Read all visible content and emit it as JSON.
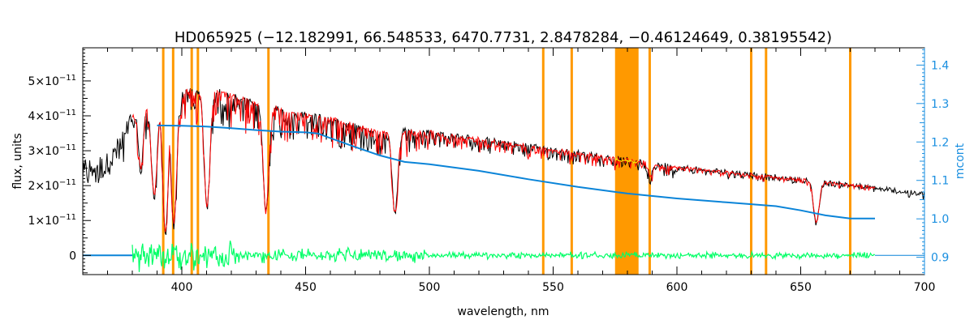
{
  "chart_data": {
    "type": "line",
    "title": "HD065925    (−12.182991, 66.548533, 6470.7731, 2.8478284, −0.46124649, 0.38195542)",
    "xlabel": "wavelength, nm",
    "ylabel": "flux, units",
    "y2label": "mcont",
    "xlim": [
      360,
      700
    ],
    "ylim": [
      -5.5e-12,
      5.95e-11
    ],
    "y2lim": [
      0.855,
      1.445
    ],
    "x_ticks": [
      400,
      450,
      500,
      550,
      600,
      650,
      700
    ],
    "x_tick_labels": [
      "400",
      "450",
      "500",
      "550",
      "600",
      "650",
      "700"
    ],
    "y_ticks": [
      0,
      1e-11,
      2e-11,
      3e-11,
      4e-11,
      5e-11
    ],
    "y_tick_mantissas": [
      "0",
      "1",
      "2",
      "3",
      "4",
      "5"
    ],
    "y_tick_suffix": "×10",
    "y_tick_exponent": "−11",
    "y2_ticks": [
      0.9,
      1.0,
      1.1,
      1.2,
      1.3,
      1.4
    ],
    "y2_tick_labels": [
      "0.9",
      "1.0",
      "1.1",
      "1.2",
      "1.3",
      "1.4"
    ],
    "grid": false,
    "colors": {
      "observed": "#000000",
      "model": "#ff0000",
      "residual": "#00ff66",
      "continuum": "#0a84d8",
      "masks": "#ff9900",
      "right_axis": "#1a8fe0",
      "highlight": "#ffff00"
    },
    "mask_lines_x": [
      392.5,
      396.5,
      404.0,
      406.5,
      435.0,
      546.0,
      557.5,
      589.0,
      630.0,
      636.0,
      670.0
    ],
    "mask_band_x": [
      575.0,
      584.5
    ],
    "continuum_points": {
      "x": [
        360,
        380,
        390,
        400,
        410,
        420,
        430,
        440,
        450,
        455,
        460,
        470,
        480,
        490,
        500,
        520,
        540,
        560,
        580,
        600,
        620,
        640,
        650,
        660,
        670,
        680
      ],
      "y": [
        0.883,
        0.883,
        1.243,
        1.242,
        1.24,
        1.236,
        1.231,
        1.227,
        1.225,
        1.222,
        1.21,
        1.187,
        1.165,
        1.148,
        1.142,
        1.125,
        1.103,
        1.083,
        1.066,
        1.053,
        1.043,
        1.033,
        1.022,
        1.009,
        1.001,
        1.001
      ]
    },
    "observed_envelope": {
      "x": [
        360,
        370,
        378,
        380,
        390,
        400,
        410,
        420,
        430,
        440,
        450,
        460,
        470,
        480,
        485,
        490,
        500,
        520,
        540,
        560,
        580,
        600,
        620,
        640,
        660,
        680,
        700
      ],
      "y": [
        2.5e-11,
        2.7e-11,
        3.6e-11,
        4e-11,
        4.4e-11,
        4.7e-11,
        4.8e-11,
        4.6e-11,
        4.4e-11,
        4.2e-11,
        4.05e-11,
        3.95e-11,
        3.75e-11,
        3.55e-11,
        3.55e-11,
        3.6e-11,
        3.55e-11,
        3.35e-11,
        3.15e-11,
        2.95e-11,
        2.75e-11,
        2.55e-11,
        2.4e-11,
        2.25e-11,
        2.1e-11,
        1.95e-11,
        1.75e-11
      ]
    },
    "absorption_lines": [
      {
        "x": 383.5,
        "depth": 0.4
      },
      {
        "x": 388.9,
        "depth": 0.6
      },
      {
        "x": 393.4,
        "depth": 0.85
      },
      {
        "x": 396.8,
        "depth": 0.8
      },
      {
        "x": 410.2,
        "depth": 0.7
      },
      {
        "x": 434.0,
        "depth": 0.7
      },
      {
        "x": 486.1,
        "depth": 0.65
      },
      {
        "x": 589.3,
        "depth": 0.15
      },
      {
        "x": 656.3,
        "depth": 0.55
      }
    ]
  }
}
